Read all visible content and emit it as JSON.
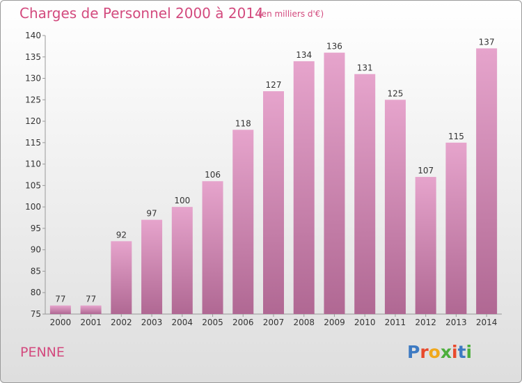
{
  "header": {
    "title": "Charges de Personnel 2000 à 2014",
    "subtitle": "(en milliers d'€)"
  },
  "footer": {
    "commune": "PENNE",
    "logo": "Proxiti"
  },
  "colors": {
    "accent": "#d34a7e",
    "bar_top": "#e6a4cc",
    "bar_bottom": "#b06893",
    "logo_letters": [
      "#3d7ac2",
      "#e8492c",
      "#f0a81c",
      "#4cae3c",
      "#e8492c",
      "#3d7ac2",
      "#4cae3c"
    ]
  },
  "chart_data": {
    "type": "bar",
    "title": "Charges de Personnel 2000 à 2014",
    "subtitle": "(en milliers d'€)",
    "xlabel": "",
    "ylabel": "",
    "categories": [
      "2000",
      "2001",
      "2002",
      "2003",
      "2004",
      "2005",
      "2006",
      "2007",
      "2008",
      "2009",
      "2010",
      "2011",
      "2012",
      "2013",
      "2014"
    ],
    "values": [
      77,
      77,
      92,
      97,
      100,
      106,
      118,
      127,
      134,
      136,
      131,
      125,
      107,
      115,
      137
    ],
    "ylim": [
      75,
      140
    ],
    "yticks": [
      75,
      80,
      85,
      90,
      95,
      100,
      105,
      110,
      115,
      120,
      125,
      130,
      135,
      140
    ],
    "grid": false,
    "legend": "none"
  }
}
